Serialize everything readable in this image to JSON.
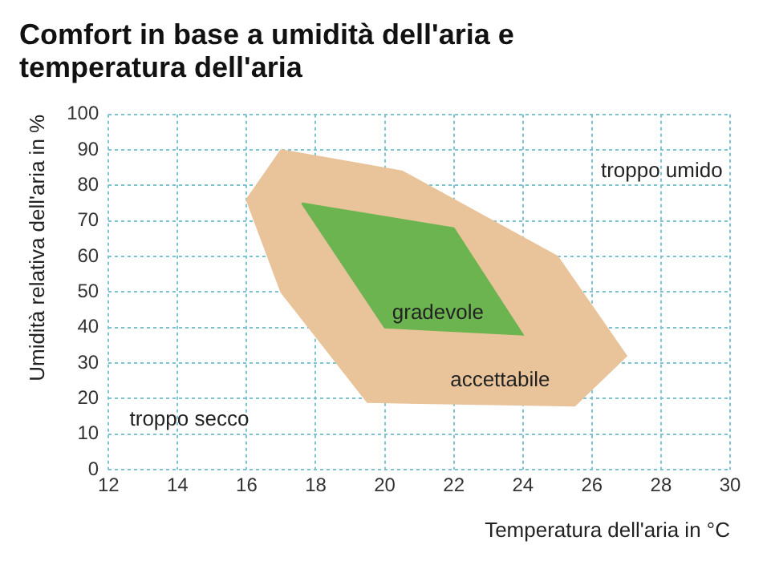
{
  "chart_data": {
    "type": "area",
    "title": "Comfort in base a umidità dell'aria e temperatura dell'aria",
    "xlabel": "Temperatura dell'aria in °C",
    "ylabel": "Umidità relativa dell'aria in %",
    "series": [
      {
        "color": "#e9c49b",
        "x": [
          17,
          20.5,
          25,
          27,
          25.5,
          19.5,
          17,
          16,
          17
        ],
        "values": [
          90,
          84,
          60,
          32,
          18,
          19,
          50,
          76,
          90
        ]
      },
      {
        "color": "#6cb44f",
        "x": [
          17.6,
          22,
          24,
          20,
          17.6
        ],
        "values": [
          75,
          68,
          38,
          40,
          75
        ]
      }
    ],
    "annotations": [
      "gradevole",
      "accettabile",
      "troppo umido",
      "troppo secco"
    ],
    "xlim": [
      12,
      30
    ],
    "xticks": [
      12,
      14,
      16,
      18,
      20,
      22,
      24,
      26,
      28,
      30
    ],
    "ylim": [
      0,
      100
    ],
    "yticks": [
      0,
      10,
      20,
      30,
      40,
      50,
      60,
      70,
      80,
      90,
      100
    ],
    "grid": true,
    "legend": false
  }
}
